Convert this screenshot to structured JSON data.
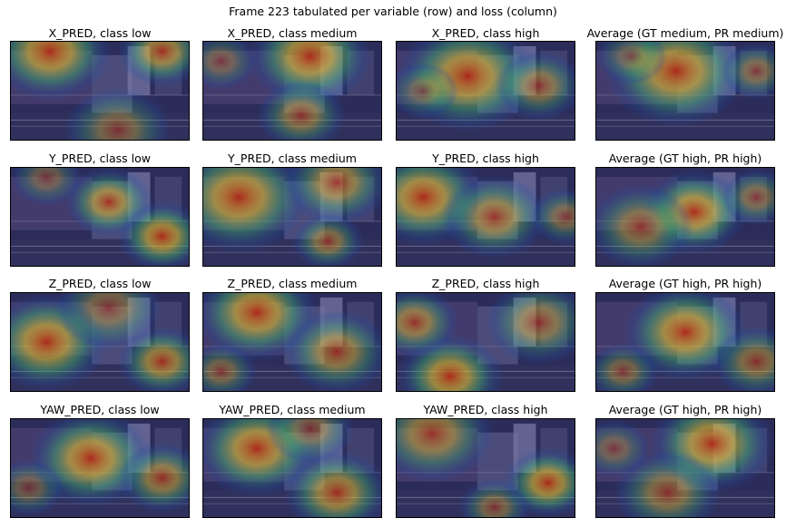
{
  "figure": {
    "title": "Frame 223 tabulated per variable (row) and loss (column)"
  },
  "rows": [
    {
      "titles": [
        "X_PRED, class low",
        "X_PRED, class medium",
        "X_PRED, class high",
        "Average (GT medium, PR medium)"
      ]
    },
    {
      "titles": [
        "Y_PRED, class low",
        "Y_PRED, class medium",
        "Y_PRED, class high",
        "Average (GT high, PR high)"
      ]
    },
    {
      "titles": [
        "Z_PRED, class low",
        "Z_PRED, class medium",
        "Z_PRED, class high",
        "Average (GT high, PR high)"
      ]
    },
    {
      "titles": [
        "YAW_PRED, class low",
        "YAW_PRED, class medium",
        "YAW_PRED, class high",
        "Average (GT high, PR high)"
      ]
    }
  ],
  "colors": {
    "heat_hot": "#b02818",
    "heat_warm": "#e0c030",
    "heat_mid": "#40b070",
    "heat_cool": "#2050a0",
    "scene_base": "#3a3a64"
  }
}
